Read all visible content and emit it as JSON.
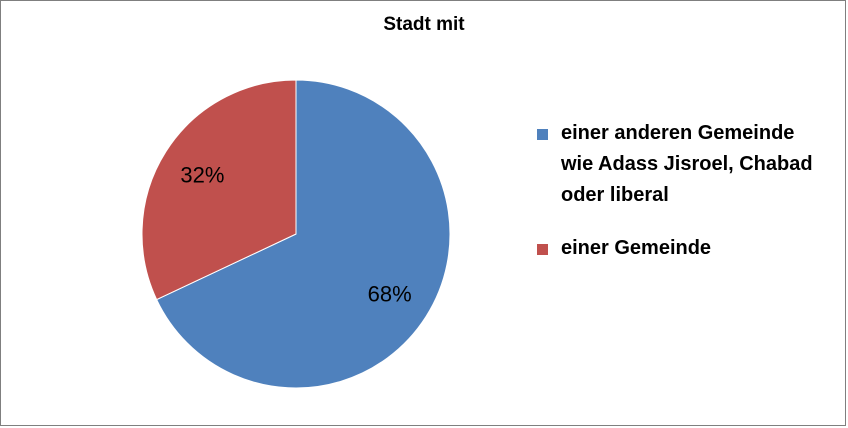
{
  "chart_data": {
    "type": "pie",
    "title": "Stadt mit",
    "categories": [
      "einer anderen Gemeinde wie Adass Jisroel, Chabad oder liberal",
      "einer Gemeinde"
    ],
    "values": [
      68,
      32
    ],
    "data_labels": [
      "68%",
      "32%"
    ],
    "colors": [
      "#4F81BD",
      "#C0504D"
    ],
    "legend_position": "right",
    "legend_lines": [
      [
        "einer anderen Gemeinde",
        "wie Adass Jisroel, Chabad",
        "oder liberal"
      ],
      [
        "einer Gemeinde"
      ]
    ]
  }
}
